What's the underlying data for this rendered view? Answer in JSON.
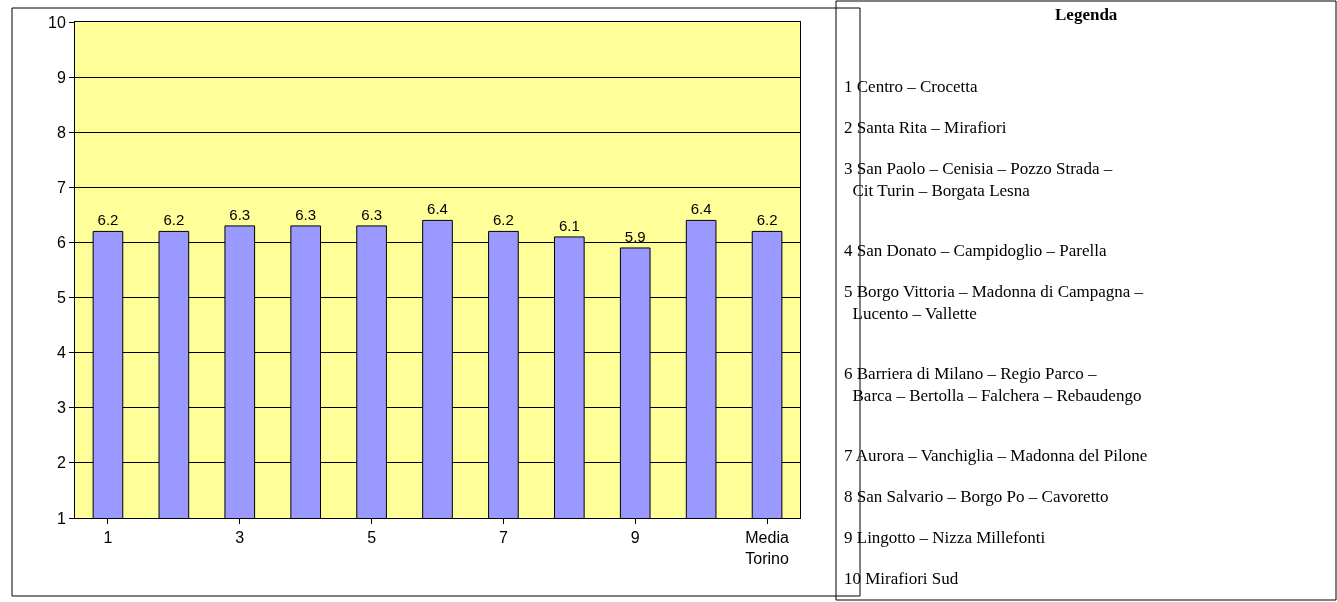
{
  "chart_data": {
    "type": "bar",
    "categories": [
      "1",
      null,
      "3",
      null,
      "5",
      null,
      "7",
      null,
      "9",
      null,
      "Media\nTorino"
    ],
    "values": [
      6.2,
      6.2,
      6.3,
      6.3,
      6.3,
      6.4,
      6.2,
      6.1,
      5.9,
      6.4,
      6.2
    ],
    "color": "#9999ff",
    "ylim": [
      1,
      10
    ],
    "yticks": [
      1,
      2,
      3,
      4,
      5,
      6,
      7,
      8,
      9,
      10
    ],
    "grid": "y",
    "data_labels": true,
    "legend": false,
    "annotations": [
      "Legenda",
      "1 Centro – Crocetta",
      "2 Santa Rita – Mirafiori",
      "3 San Paolo – Cenisia – Pozzo Strada –\n  Cit Turin – Borgata Lesna",
      "4 San Donato – Campidoglio – Parella",
      "5 Borgo Vittoria – Madonna di Campagna –\n  Lucento – Vallette",
      "6 Barriera di Milano – Regio Parco –\n  Barca – Bertolla – Falchera – Rebaudengo",
      "7 Aurora – Vanchiglia – Madonna del Pilone",
      "8 San Salvario – Borgo Po – Cavoretto",
      "9 Lingotto – Nizza Millefonti",
      "10 Mirafiori Sud"
    ]
  }
}
